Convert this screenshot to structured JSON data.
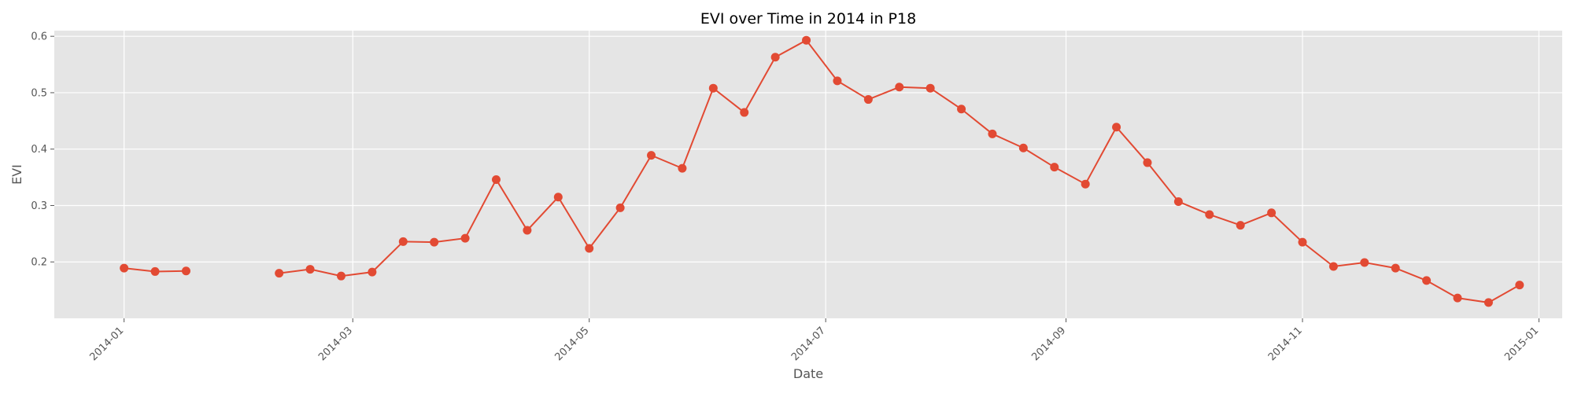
{
  "chart_data": {
    "type": "line",
    "title": "EVI over Time in 2014 in P18",
    "xlabel": "Date",
    "ylabel": "EVI",
    "grid": true,
    "ylim": [
      0.1,
      0.61
    ],
    "xlim": [
      "2013-12-14",
      "2015-01-07"
    ],
    "x_ticks": [
      "2014-01",
      "2014-03",
      "2014-05",
      "2014-07",
      "2014-09",
      "2014-11",
      "2015-01"
    ],
    "y_ticks": [
      0.2,
      0.3,
      0.4,
      0.5,
      0.6
    ],
    "series": [
      {
        "color": "#E24A33",
        "segments": [
          {
            "x": [
              "2014-01-01",
              "2014-01-09",
              "2014-01-17"
            ],
            "y": [
              0.189,
              0.183,
              0.184
            ]
          },
          {
            "x": [
              "2014-02-10",
              "2014-02-18",
              "2014-02-26",
              "2014-03-06",
              "2014-03-14",
              "2014-03-22",
              "2014-03-30",
              "2014-04-07",
              "2014-04-15",
              "2014-04-23",
              "2014-05-01",
              "2014-05-09",
              "2014-05-17",
              "2014-05-25",
              "2014-06-02",
              "2014-06-10",
              "2014-06-18",
              "2014-06-26",
              "2014-07-04",
              "2014-07-12",
              "2014-07-20",
              "2014-07-28",
              "2014-08-05",
              "2014-08-13",
              "2014-08-21",
              "2014-08-29",
              "2014-09-06",
              "2014-09-14",
              "2014-09-22",
              "2014-09-30",
              "2014-10-08",
              "2014-10-16",
              "2014-10-24",
              "2014-11-01",
              "2014-11-09",
              "2014-11-17",
              "2014-11-25",
              "2014-12-03",
              "2014-12-11",
              "2014-12-19",
              "2014-12-27"
            ],
            "y": [
              0.18,
              0.187,
              0.175,
              0.182,
              0.236,
              0.235,
              0.242,
              0.346,
              0.256,
              0.315,
              0.224,
              0.296,
              0.389,
              0.366,
              0.508,
              0.465,
              0.563,
              0.593,
              0.521,
              0.488,
              0.51,
              0.508,
              0.471,
              0.427,
              0.402,
              0.368,
              0.338,
              0.439,
              0.376,
              0.307,
              0.284,
              0.265,
              0.287,
              0.235,
              0.192,
              0.199,
              0.189,
              0.167,
              0.136,
              0.128,
              0.159
            ]
          }
        ]
      }
    ]
  }
}
